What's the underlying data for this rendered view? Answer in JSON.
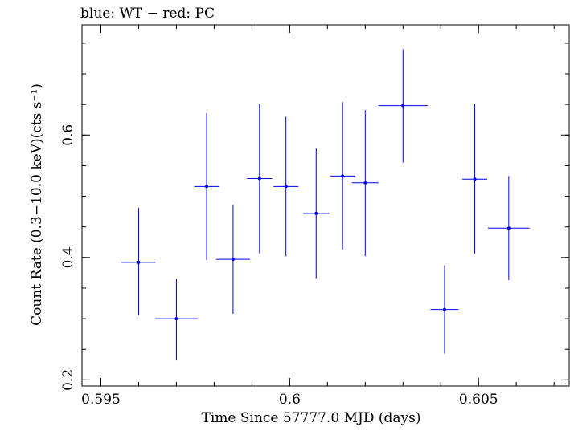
{
  "chart_data": {
    "type": "scatter",
    "title": "blue: WT − red: PC",
    "xlabel": "Time Since 57777.0 MJD (days)",
    "ylabel": "Count Rate (0.3−10.0 keV)(cts s⁻¹)",
    "xlim": [
      0.5945,
      0.6074
    ],
    "ylim": [
      0.19,
      0.78
    ],
    "x_ticks": [
      {
        "value": 0.595,
        "label": "0.595"
      },
      {
        "value": 0.6,
        "label": "0.6"
      },
      {
        "value": 0.605,
        "label": "0.605"
      }
    ],
    "y_ticks": [
      {
        "value": 0.2,
        "label": "0.2"
      },
      {
        "value": 0.4,
        "label": "0.4"
      },
      {
        "value": 0.6,
        "label": "0.6"
      }
    ],
    "x_minor_step": 0.001,
    "y_minor_step": 0.05,
    "grid": false,
    "series": [
      {
        "name": "WT",
        "color": "#0000ff",
        "points": [
          {
            "x": 0.596,
            "xerr": 0.00045,
            "y": 0.392,
            "ylo": 0.306,
            "yhi": 0.481
          },
          {
            "x": 0.597,
            "xerr": 0.00057,
            "y": 0.3,
            "ylo": 0.233,
            "yhi": 0.365
          },
          {
            "x": 0.5978,
            "xerr": 0.00033,
            "y": 0.516,
            "ylo": 0.396,
            "yhi": 0.636
          },
          {
            "x": 0.5985,
            "xerr": 0.00045,
            "y": 0.397,
            "ylo": 0.308,
            "yhi": 0.486
          },
          {
            "x": 0.5992,
            "xerr": 0.00033,
            "y": 0.529,
            "ylo": 0.407,
            "yhi": 0.651
          },
          {
            "x": 0.5999,
            "xerr": 0.00033,
            "y": 0.516,
            "ylo": 0.402,
            "yhi": 0.63
          },
          {
            "x": 0.6007,
            "xerr": 0.00035,
            "y": 0.472,
            "ylo": 0.366,
            "yhi": 0.578
          },
          {
            "x": 0.6014,
            "xerr": 0.00033,
            "y": 0.533,
            "ylo": 0.413,
            "yhi": 0.654
          },
          {
            "x": 0.602,
            "xerr": 0.00035,
            "y": 0.522,
            "ylo": 0.402,
            "yhi": 0.641
          },
          {
            "x": 0.603,
            "xerr": 0.00065,
            "y": 0.648,
            "ylo": 0.555,
            "yhi": 0.74
          },
          {
            "x": 0.6041,
            "xerr": 0.00037,
            "y": 0.315,
            "ylo": 0.243,
            "yhi": 0.387
          },
          {
            "x": 0.6049,
            "xerr": 0.00033,
            "y": 0.528,
            "ylo": 0.406,
            "yhi": 0.651
          },
          {
            "x": 0.6058,
            "xerr": 0.00055,
            "y": 0.448,
            "ylo": 0.363,
            "yhi": 0.533
          }
        ]
      }
    ]
  }
}
